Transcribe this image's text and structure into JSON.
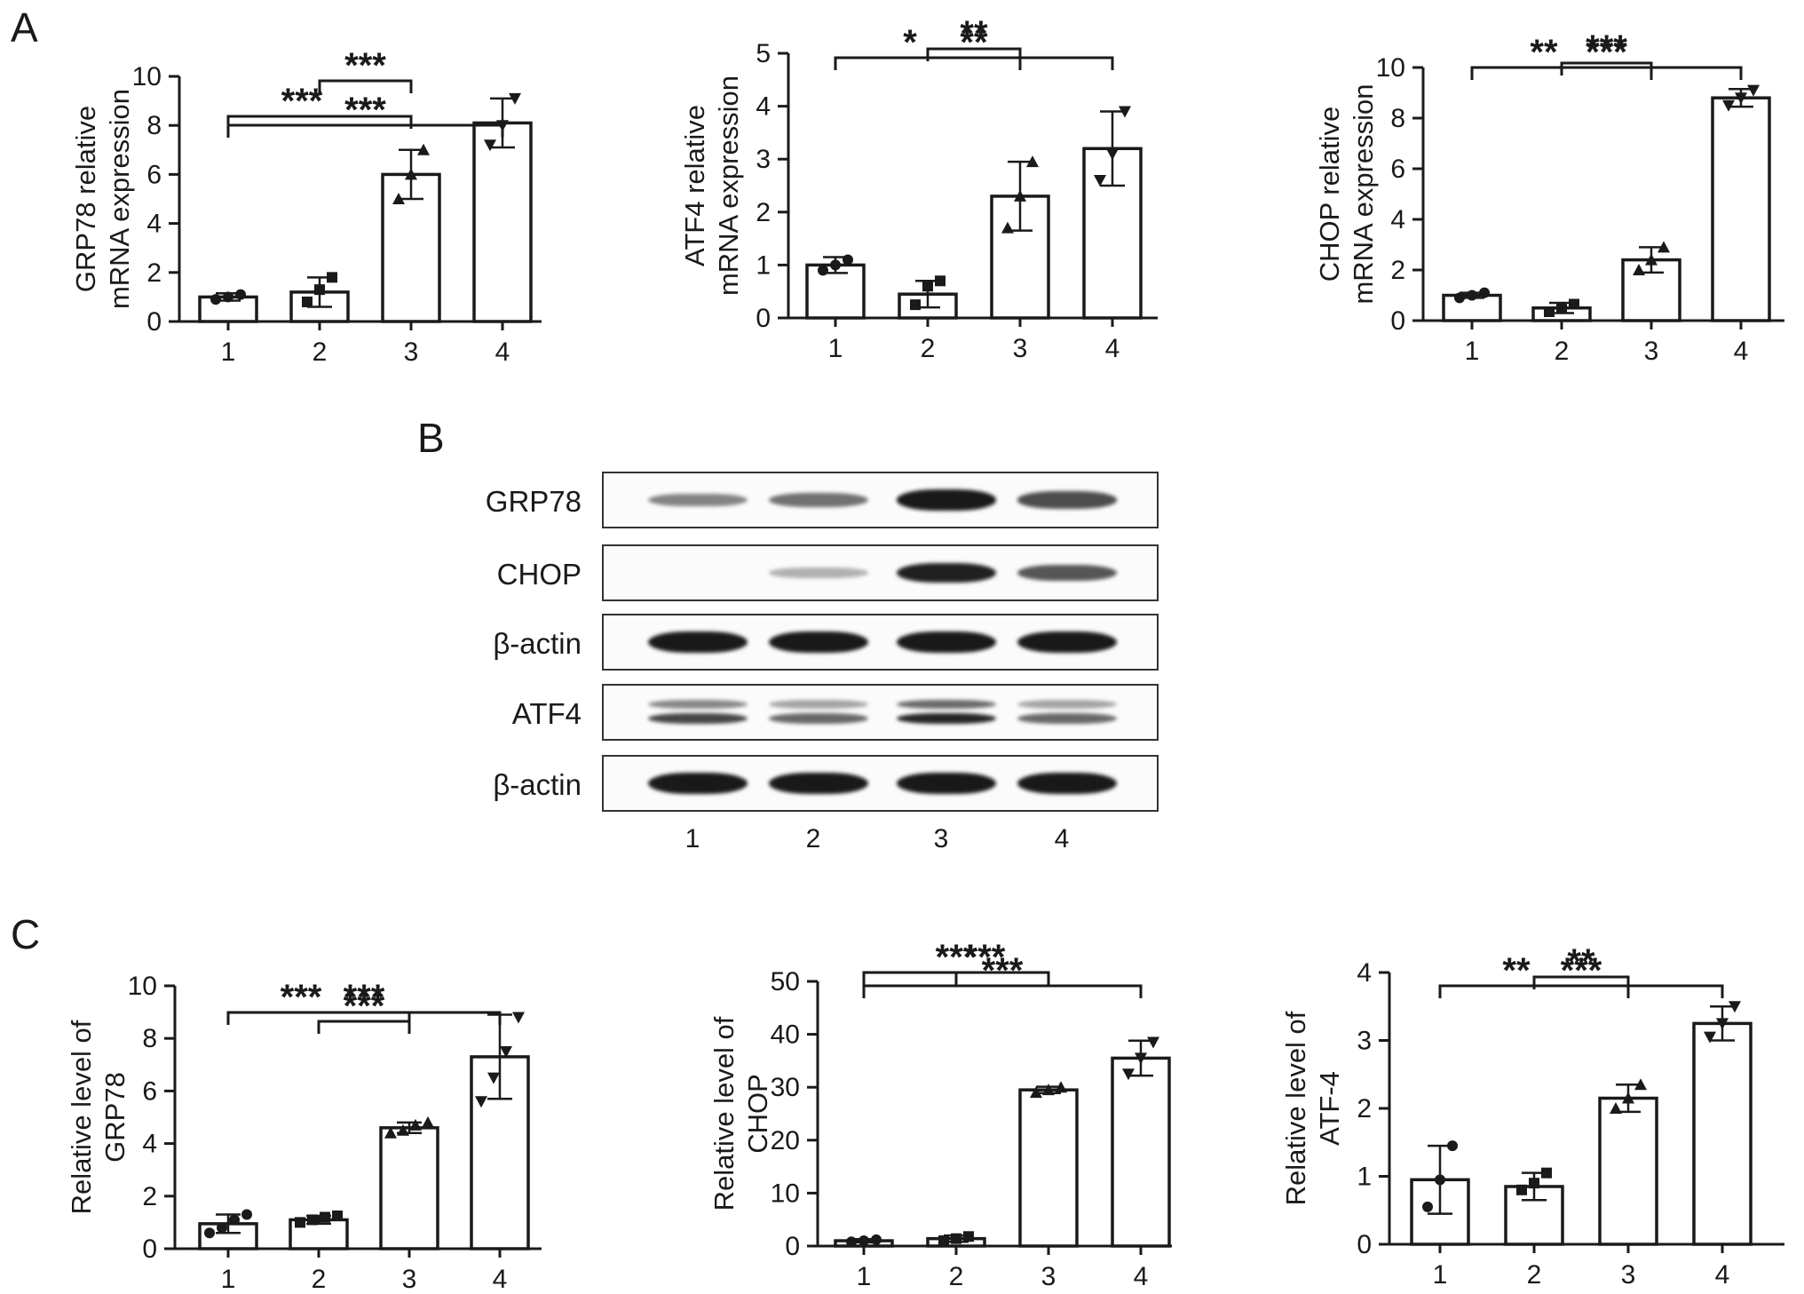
{
  "panels": {
    "A": "A",
    "B": "B",
    "C": "C"
  },
  "chart_data": [
    {
      "type": "bar",
      "panel": "A",
      "categories": [
        "1",
        "2",
        "3",
        "4"
      ],
      "values": [
        1.0,
        1.2,
        6.0,
        8.1
      ],
      "errors": [
        0.15,
        0.6,
        1.0,
        1.0
      ],
      "points": [
        [
          0.9,
          1.0,
          1.1
        ],
        [
          0.8,
          1.3,
          1.8
        ],
        [
          5.0,
          6.0,
          7.0
        ],
        [
          7.2,
          8.0,
          9.1
        ]
      ],
      "ylabel_lines": [
        "GRP78 relative",
        "mRNA expression"
      ],
      "ylim": [
        0,
        10
      ],
      "yticks": [
        0,
        2,
        4,
        6,
        8,
        10
      ],
      "significance": [
        {
          "from": 1,
          "to": 4,
          "label": "***"
        },
        {
          "from": 1,
          "to": 3,
          "label": "***"
        },
        {
          "from": 2,
          "to": 3,
          "label": "***"
        }
      ]
    },
    {
      "type": "bar",
      "panel": "A",
      "categories": [
        "1",
        "2",
        "3",
        "4"
      ],
      "values": [
        1.0,
        0.45,
        2.3,
        3.2
      ],
      "errors": [
        0.15,
        0.25,
        0.65,
        0.7
      ],
      "points": [
        [
          0.9,
          1.0,
          1.1
        ],
        [
          0.25,
          0.6,
          0.7
        ],
        [
          1.7,
          2.3,
          2.95
        ],
        [
          2.6,
          3.1,
          3.9
        ]
      ],
      "ylabel_lines": [
        "ATF4 relative",
        "mRNA expression"
      ],
      "ylim": [
        0,
        5
      ],
      "yticks": [
        0,
        1,
        2,
        3,
        4,
        5
      ],
      "significance": [
        {
          "from": 1,
          "to": 4,
          "label": "**"
        },
        {
          "from": 1,
          "to": 3,
          "label": "*"
        },
        {
          "from": 2,
          "to": 3,
          "label": "**"
        }
      ]
    },
    {
      "type": "bar",
      "panel": "A",
      "categories": [
        "1",
        "2",
        "3",
        "4"
      ],
      "values": [
        1.0,
        0.5,
        2.4,
        8.8
      ],
      "errors": [
        0.1,
        0.2,
        0.5,
        0.35
      ],
      "points": [
        [
          0.9,
          1.0,
          1.1
        ],
        [
          0.35,
          0.5,
          0.65
        ],
        [
          2.0,
          2.4,
          2.9
        ],
        [
          8.5,
          8.8,
          9.1
        ]
      ],
      "ylabel_lines": [
        "CHOP relative",
        "mRNA expression"
      ],
      "ylim": [
        0,
        10
      ],
      "yticks": [
        0,
        2,
        4,
        6,
        8,
        10
      ],
      "significance": [
        {
          "from": 1,
          "to": 4,
          "label": "***"
        },
        {
          "from": 1,
          "to": 3,
          "label": "**"
        },
        {
          "from": 2,
          "to": 3,
          "label": "***"
        }
      ]
    },
    {
      "type": "bar",
      "panel": "C",
      "categories": [
        "1",
        "2",
        "3",
        "4"
      ],
      "values": [
        0.95,
        1.1,
        4.6,
        7.3
      ],
      "errors": [
        0.35,
        0.15,
        0.2,
        1.6
      ],
      "points": [
        [
          0.6,
          0.8,
          1.1,
          1.3
        ],
        [
          1.0,
          1.1,
          1.2,
          1.25
        ],
        [
          4.4,
          4.5,
          4.7,
          4.8
        ],
        [
          5.6,
          6.5,
          7.5,
          8.8
        ]
      ],
      "ylabel_lines": [
        "Relative level of",
        "GRP78"
      ],
      "ylim": [
        0,
        10
      ],
      "yticks": [
        0,
        2,
        4,
        6,
        8,
        10
      ],
      "significance": [
        {
          "from": 1,
          "to": 4,
          "label": "***"
        },
        {
          "from": 1,
          "to": 3,
          "label": "***"
        },
        {
          "from": 2,
          "to": 3,
          "label": "***"
        }
      ]
    },
    {
      "type": "bar",
      "panel": "C",
      "categories": [
        "1",
        "2",
        "3",
        "4"
      ],
      "values": [
        1.0,
        1.4,
        29.5,
        35.5
      ],
      "errors": [
        0.3,
        0.6,
        0.6,
        3.3
      ],
      "points": [
        [
          0.8,
          1.0,
          1.2
        ],
        [
          1.0,
          1.4,
          1.8
        ],
        [
          29.0,
          29.5,
          30.0
        ],
        [
          32.5,
          35.5,
          38.5
        ]
      ],
      "ylabel_lines": [
        "Relative level of",
        "CHOP"
      ],
      "ylim": [
        0,
        50
      ],
      "yticks": [
        0,
        10,
        20,
        30,
        40,
        50
      ],
      "significance": [
        {
          "from": 1,
          "to": 4,
          "label": "***"
        },
        {
          "from": 2,
          "to": 3,
          "label": "***"
        },
        {
          "from": 1,
          "to": 3,
          "label": "***"
        }
      ]
    },
    {
      "type": "bar",
      "panel": "C",
      "categories": [
        "1",
        "2",
        "3",
        "4"
      ],
      "values": [
        0.95,
        0.85,
        2.15,
        3.25
      ],
      "errors": [
        0.5,
        0.2,
        0.2,
        0.25
      ],
      "points": [
        [
          0.55,
          0.95,
          1.45
        ],
        [
          0.8,
          0.9,
          1.05
        ],
        [
          2.0,
          2.15,
          2.35
        ],
        [
          3.05,
          3.25,
          3.5
        ]
      ],
      "ylabel_lines": [
        "Relative level of",
        "ATF-4"
      ],
      "ylim": [
        0,
        4
      ],
      "yticks": [
        0,
        1,
        2,
        3,
        4
      ],
      "significance": [
        {
          "from": 1,
          "to": 4,
          "label": "***"
        },
        {
          "from": 1,
          "to": 3,
          "label": "**"
        },
        {
          "from": 2,
          "to": 3,
          "label": "**"
        }
      ]
    }
  ],
  "western_blot": {
    "rows": [
      {
        "label": "GRP78",
        "intensity": [
          0.35,
          0.45,
          0.95,
          0.65
        ],
        "double": false
      },
      {
        "label": "CHOP",
        "intensity": [
          0.0,
          0.1,
          0.9,
          0.6
        ],
        "double": false
      },
      {
        "label": "β-actin",
        "intensity": [
          1.0,
          1.0,
          1.0,
          1.0
        ],
        "double": false
      },
      {
        "label": "ATF4",
        "intensity": [
          0.6,
          0.45,
          0.75,
          0.45
        ],
        "double": true
      },
      {
        "label": "β-actin",
        "intensity": [
          1.0,
          1.0,
          1.0,
          1.0
        ],
        "double": false
      }
    ],
    "lanes": [
      "1",
      "2",
      "3",
      "4"
    ]
  }
}
